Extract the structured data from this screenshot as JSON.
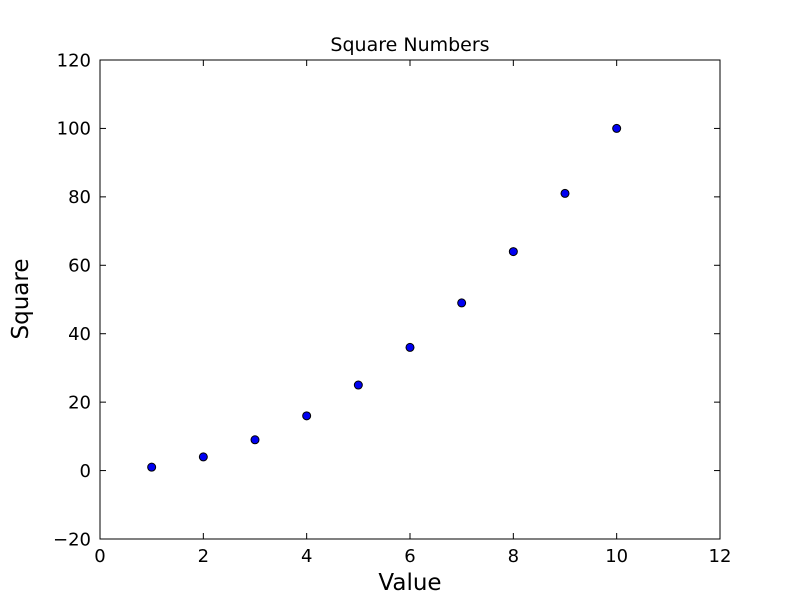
{
  "chart_data": {
    "type": "scatter",
    "title": "Square Numbers",
    "xlabel": "Value",
    "ylabel": "Square",
    "x": [
      1,
      2,
      3,
      4,
      5,
      6,
      7,
      8,
      9,
      10
    ],
    "y": [
      1,
      4,
      9,
      16,
      25,
      36,
      49,
      64,
      81,
      100
    ],
    "xlim": [
      0,
      12
    ],
    "ylim": [
      -20,
      120
    ],
    "xticks": [
      0,
      2,
      4,
      6,
      8,
      10,
      12
    ],
    "yticks": [
      -20,
      0,
      20,
      40,
      60,
      80,
      100,
      120
    ],
    "grid": false,
    "legend": "none",
    "tick_direction": "in",
    "marker": {
      "shape": "circle",
      "fill_color": "#0000f2",
      "edge_color": "#000000"
    },
    "frame_color": "#000000",
    "background_color": "#ffffff"
  }
}
